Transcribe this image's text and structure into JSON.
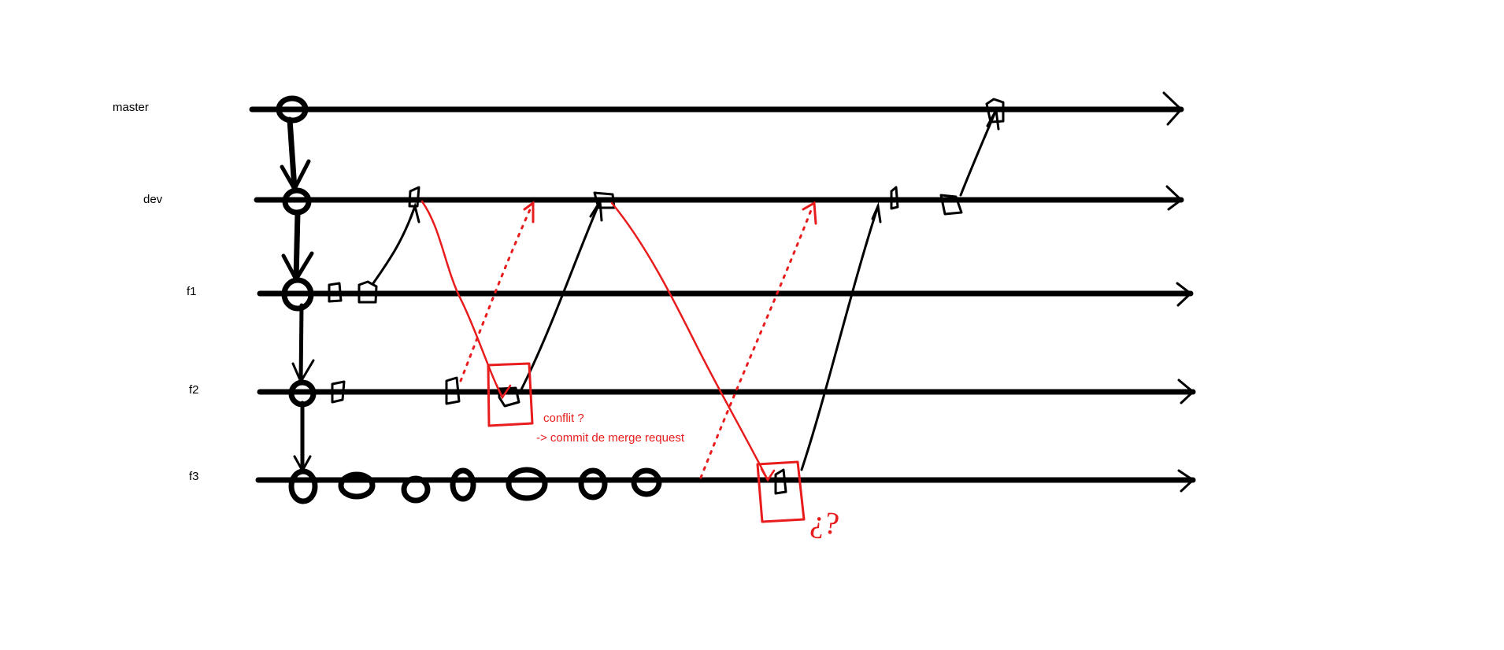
{
  "branches": [
    {
      "id": "master",
      "label": "master"
    },
    {
      "id": "dev",
      "label": "dev"
    },
    {
      "id": "f1",
      "label": "f1"
    },
    {
      "id": "f2",
      "label": "f2"
    },
    {
      "id": "f3",
      "label": "f3"
    }
  ],
  "annotations": {
    "conflict_question": "conflit ?",
    "merge_commit_note": "-> commit de merge request",
    "question_mark": "¿?"
  },
  "colors": {
    "ink": "#000000",
    "annotation": "#e81c1c",
    "background": "#ffffff"
  }
}
